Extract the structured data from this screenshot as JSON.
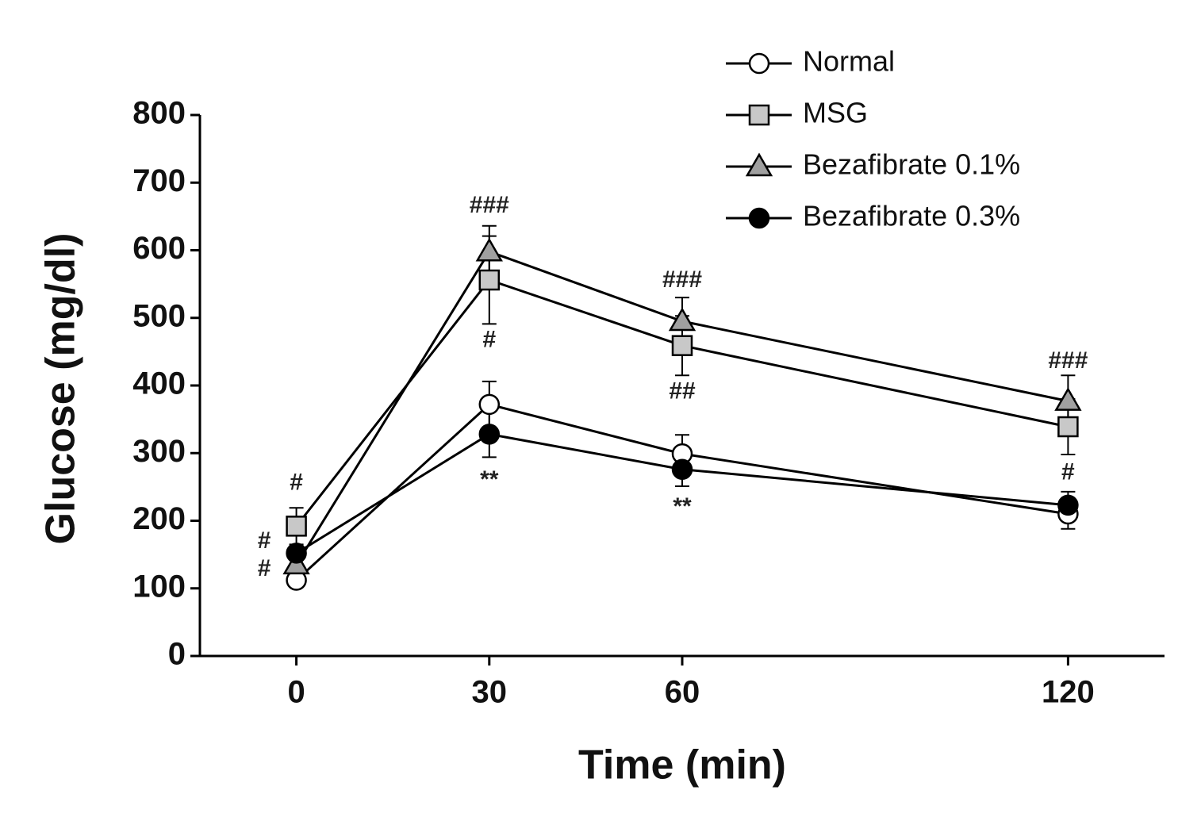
{
  "chart_data": {
    "type": "line",
    "x_label": "Time (min)",
    "y_label": "Glucose (mg/dl)",
    "x": [
      0,
      30,
      60,
      120
    ],
    "xlim": [
      -15,
      135
    ],
    "xticks": [
      0,
      30,
      60,
      120
    ],
    "ylim": [
      0,
      800
    ],
    "yticks": [
      0,
      100,
      200,
      300,
      400,
      500,
      600,
      700,
      800
    ],
    "legend": "top-right",
    "line_color": "#000000",
    "series": [
      {
        "name": "Normal",
        "marker": "circle",
        "color": "#ffffff",
        "values": [
          112,
          372,
          299,
          210
        ],
        "errors": [
          10,
          34,
          28,
          22
        ]
      },
      {
        "name": "MSG",
        "marker": "square",
        "color": "#c8c8c8",
        "values": [
          192,
          556,
          459,
          339
        ],
        "errors": [
          27,
          65,
          44,
          41
        ]
      },
      {
        "name": "Bezafibrate 0.1%",
        "marker": "triangle",
        "color": "#a0a0a0",
        "values": [
          135,
          598,
          495,
          377
        ],
        "errors": [
          10,
          38,
          35,
          38
        ]
      },
      {
        "name": "Bezafibrate 0.3%",
        "marker": "circle",
        "color": "#000000",
        "values": [
          152,
          328,
          276,
          223
        ],
        "errors": [
          10,
          34,
          25,
          20
        ]
      }
    ],
    "annotations": [
      {
        "text": "#",
        "x": 0,
        "y": 255
      },
      {
        "text": "#",
        "x": -5,
        "y": 169
      },
      {
        "text": "#",
        "x": -5,
        "y": 128
      },
      {
        "text": "###",
        "x": 30,
        "y": 665
      },
      {
        "text": "#",
        "x": 30,
        "y": 466
      },
      {
        "text": "**",
        "x": 30,
        "y": 259
      },
      {
        "text": "###",
        "x": 60,
        "y": 555
      },
      {
        "text": "##",
        "x": 60,
        "y": 390
      },
      {
        "text": "**",
        "x": 60,
        "y": 219
      },
      {
        "text": "###",
        "x": 120,
        "y": 435
      },
      {
        "text": "#",
        "x": 120,
        "y": 270
      }
    ]
  }
}
